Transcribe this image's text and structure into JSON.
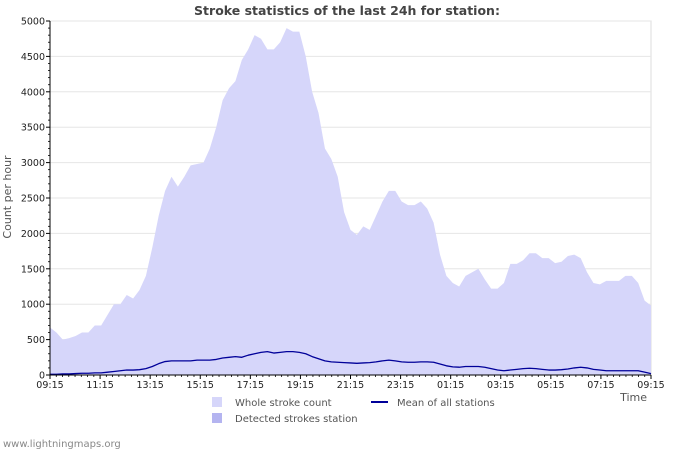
{
  "chart_data": {
    "type": "area",
    "title": "Stroke statistics of the last 24h for station:",
    "xlabel": "Time",
    "ylabel": "Count per hour",
    "ylim": [
      0,
      5000
    ],
    "yticks": [
      0,
      500,
      1000,
      1500,
      2000,
      2500,
      3000,
      3500,
      4000,
      4500,
      5000
    ],
    "xticks": [
      "09:15",
      "11:15",
      "13:15",
      "15:15",
      "17:15",
      "19:15",
      "21:15",
      "23:15",
      "01:15",
      "03:15",
      "05:15",
      "07:15",
      "09:15"
    ],
    "grid": "horizontal",
    "legend_placement": "bottom",
    "series": [
      {
        "name": "Whole stroke count",
        "kind": "area",
        "color": "#d6d6fa",
        "values": [
          670,
          600,
          500,
          520,
          550,
          600,
          600,
          700,
          700,
          850,
          1000,
          1000,
          1130,
          1080,
          1200,
          1400,
          1800,
          2250,
          2600,
          2800,
          2660,
          2800,
          2960,
          2980,
          3000,
          3200,
          3500,
          3880,
          4050,
          4150,
          4450,
          4600,
          4800,
          4750,
          4600,
          4600,
          4700,
          4900,
          4850,
          4850,
          4500,
          4000,
          3700,
          3200,
          3050,
          2800,
          2300,
          2050,
          1980,
          2100,
          2050,
          2250,
          2450,
          2600,
          2600,
          2450,
          2400,
          2400,
          2450,
          2350,
          2150,
          1700,
          1400,
          1300,
          1250,
          1400,
          1450,
          1500,
          1350,
          1220,
          1220,
          1300,
          1570,
          1570,
          1620,
          1720,
          1720,
          1650,
          1650,
          1580,
          1600,
          1680,
          1700,
          1650,
          1450,
          1300,
          1280,
          1330,
          1330,
          1330,
          1400,
          1400,
          1300,
          1050,
          980
        ]
      },
      {
        "name": "Detected strokes station",
        "kind": "area",
        "color": "#b4b4f0",
        "values": [
          0,
          0,
          0,
          0,
          0,
          0,
          0,
          0,
          0,
          0,
          0,
          0,
          0,
          0,
          0,
          0,
          0,
          0,
          0,
          0,
          0,
          0,
          0,
          0,
          0,
          0,
          0,
          0,
          0,
          0,
          0,
          0,
          0,
          0,
          0,
          0,
          0,
          0,
          0,
          0,
          0,
          0,
          0,
          0,
          0,
          0,
          0,
          0,
          0,
          0,
          0,
          0,
          0,
          0,
          0,
          0,
          0,
          0,
          0,
          0,
          0,
          0,
          0,
          0,
          0,
          0,
          0,
          0,
          0,
          0,
          0,
          0,
          0,
          0,
          0,
          0,
          0,
          0,
          0,
          0,
          0,
          0,
          0,
          0,
          0,
          0,
          0,
          0,
          0,
          0,
          0,
          0,
          0,
          0,
          0
        ]
      },
      {
        "name": "Mean of all stations",
        "kind": "line",
        "color": "#000099",
        "values": [
          10,
          10,
          15,
          15,
          20,
          25,
          25,
          30,
          30,
          40,
          50,
          60,
          70,
          70,
          75,
          90,
          120,
          160,
          190,
          200,
          200,
          200,
          200,
          210,
          210,
          210,
          220,
          240,
          250,
          260,
          250,
          280,
          300,
          320,
          330,
          310,
          320,
          330,
          330,
          320,
          300,
          260,
          230,
          200,
          185,
          180,
          175,
          170,
          165,
          170,
          175,
          185,
          200,
          210,
          200,
          185,
          180,
          180,
          185,
          185,
          180,
          155,
          130,
          115,
          110,
          120,
          120,
          120,
          110,
          90,
          70,
          60,
          70,
          80,
          90,
          95,
          90,
          80,
          70,
          70,
          75,
          85,
          100,
          110,
          100,
          80,
          70,
          60,
          60,
          60,
          60,
          60,
          60,
          40,
          20
        ]
      }
    ]
  },
  "legend": {
    "whole": "Whole stroke count",
    "detected": "Detected strokes station",
    "mean": "Mean of all stations"
  },
  "footer": "www.lightningmaps.org"
}
